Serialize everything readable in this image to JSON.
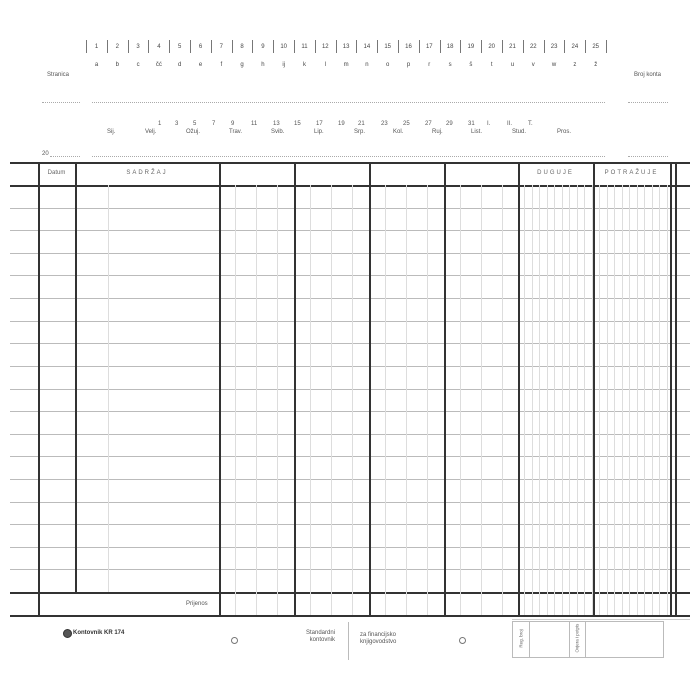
{
  "header": {
    "numbers": [
      "1",
      "2",
      "3",
      "4",
      "5",
      "6",
      "7",
      "8",
      "9",
      "10",
      "11",
      "12",
      "13",
      "14",
      "15",
      "16",
      "17",
      "18",
      "19",
      "20",
      "21",
      "22",
      "23",
      "24",
      "25"
    ],
    "letters": [
      "a",
      "b",
      "c",
      "čć",
      "d",
      "e",
      "f",
      "g",
      "h",
      "ij",
      "k",
      "l",
      "m",
      "n",
      "o",
      "p",
      "r",
      "s",
      "š",
      "t",
      "u",
      "v",
      "w",
      "z",
      "ž"
    ],
    "page_label": "Stranica",
    "account_label": "Broj konta",
    "days": [
      "1",
      "3",
      "5",
      "7",
      "9",
      "11",
      "13",
      "15",
      "17",
      "19",
      "21",
      "23",
      "25",
      "27",
      "29",
      "31",
      "I.",
      "II.",
      "T."
    ],
    "months": [
      "Sij.",
      "Velj.",
      "Ožuj.",
      "Trav.",
      "Svib.",
      "Lip.",
      "Srp.",
      "Kol.",
      "Ruj.",
      "List.",
      "Stud.",
      "Pros."
    ],
    "year_prefix": "20"
  },
  "table": {
    "col_date": "Datum",
    "col_content": "SADRŽAJ",
    "col_debit": "DUGUJE",
    "col_credit": "POTRAŽUJE",
    "carry_over": "Prijenos",
    "row_count": 18
  },
  "footer": {
    "product": "Kontovnik KR 174",
    "standard": [
      "Standardni",
      "kontovnik"
    ],
    "purpose": [
      "za financijsko",
      "knjigovodstvo"
    ],
    "reg_label": "Reg. broj",
    "sign_label": "Ovjera i potpis"
  }
}
